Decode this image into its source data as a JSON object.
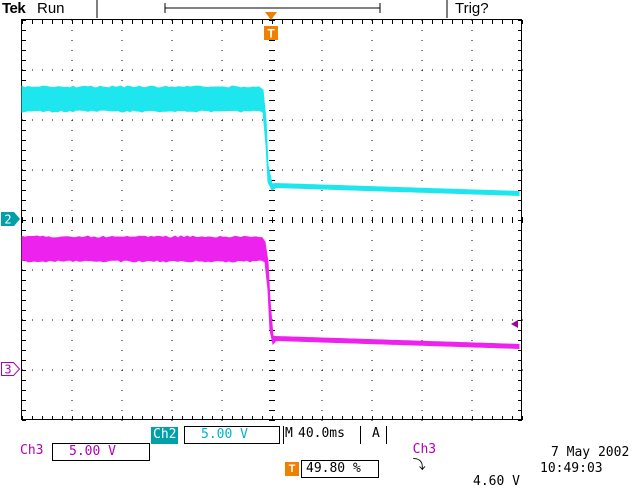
{
  "header": {
    "brand": "Tek",
    "run_status": "Run",
    "trigger_status": "Trig?"
  },
  "markers": {
    "trigger_marker": "T",
    "ch2_ground": "2",
    "ch3_ground": "3"
  },
  "readouts": {
    "ch2_label": "Ch2",
    "ch2_scale": "5.00 V",
    "timebase_prefix": "M",
    "timebase": "40.0ms",
    "trigger_mode": "A",
    "trigger_source": "Ch3",
    "trigger_slope_symbol": "⤵",
    "trigger_level": "4.60 V",
    "ch3_label": "Ch3",
    "ch3_scale": "5.00 V",
    "trigger_position_marker": "T",
    "trigger_position": "49.80 %",
    "date": "7 May 2002",
    "time": "10:49:03"
  },
  "colors": {
    "ch2": "#1ee6ee",
    "ch3": "#ee22ee",
    "trigger": "#f08000",
    "ch2_label_bg": "#00a0a8",
    "ch3_label_text": "#b300b3",
    "trigger_level_marker": "#a000a0"
  }
}
